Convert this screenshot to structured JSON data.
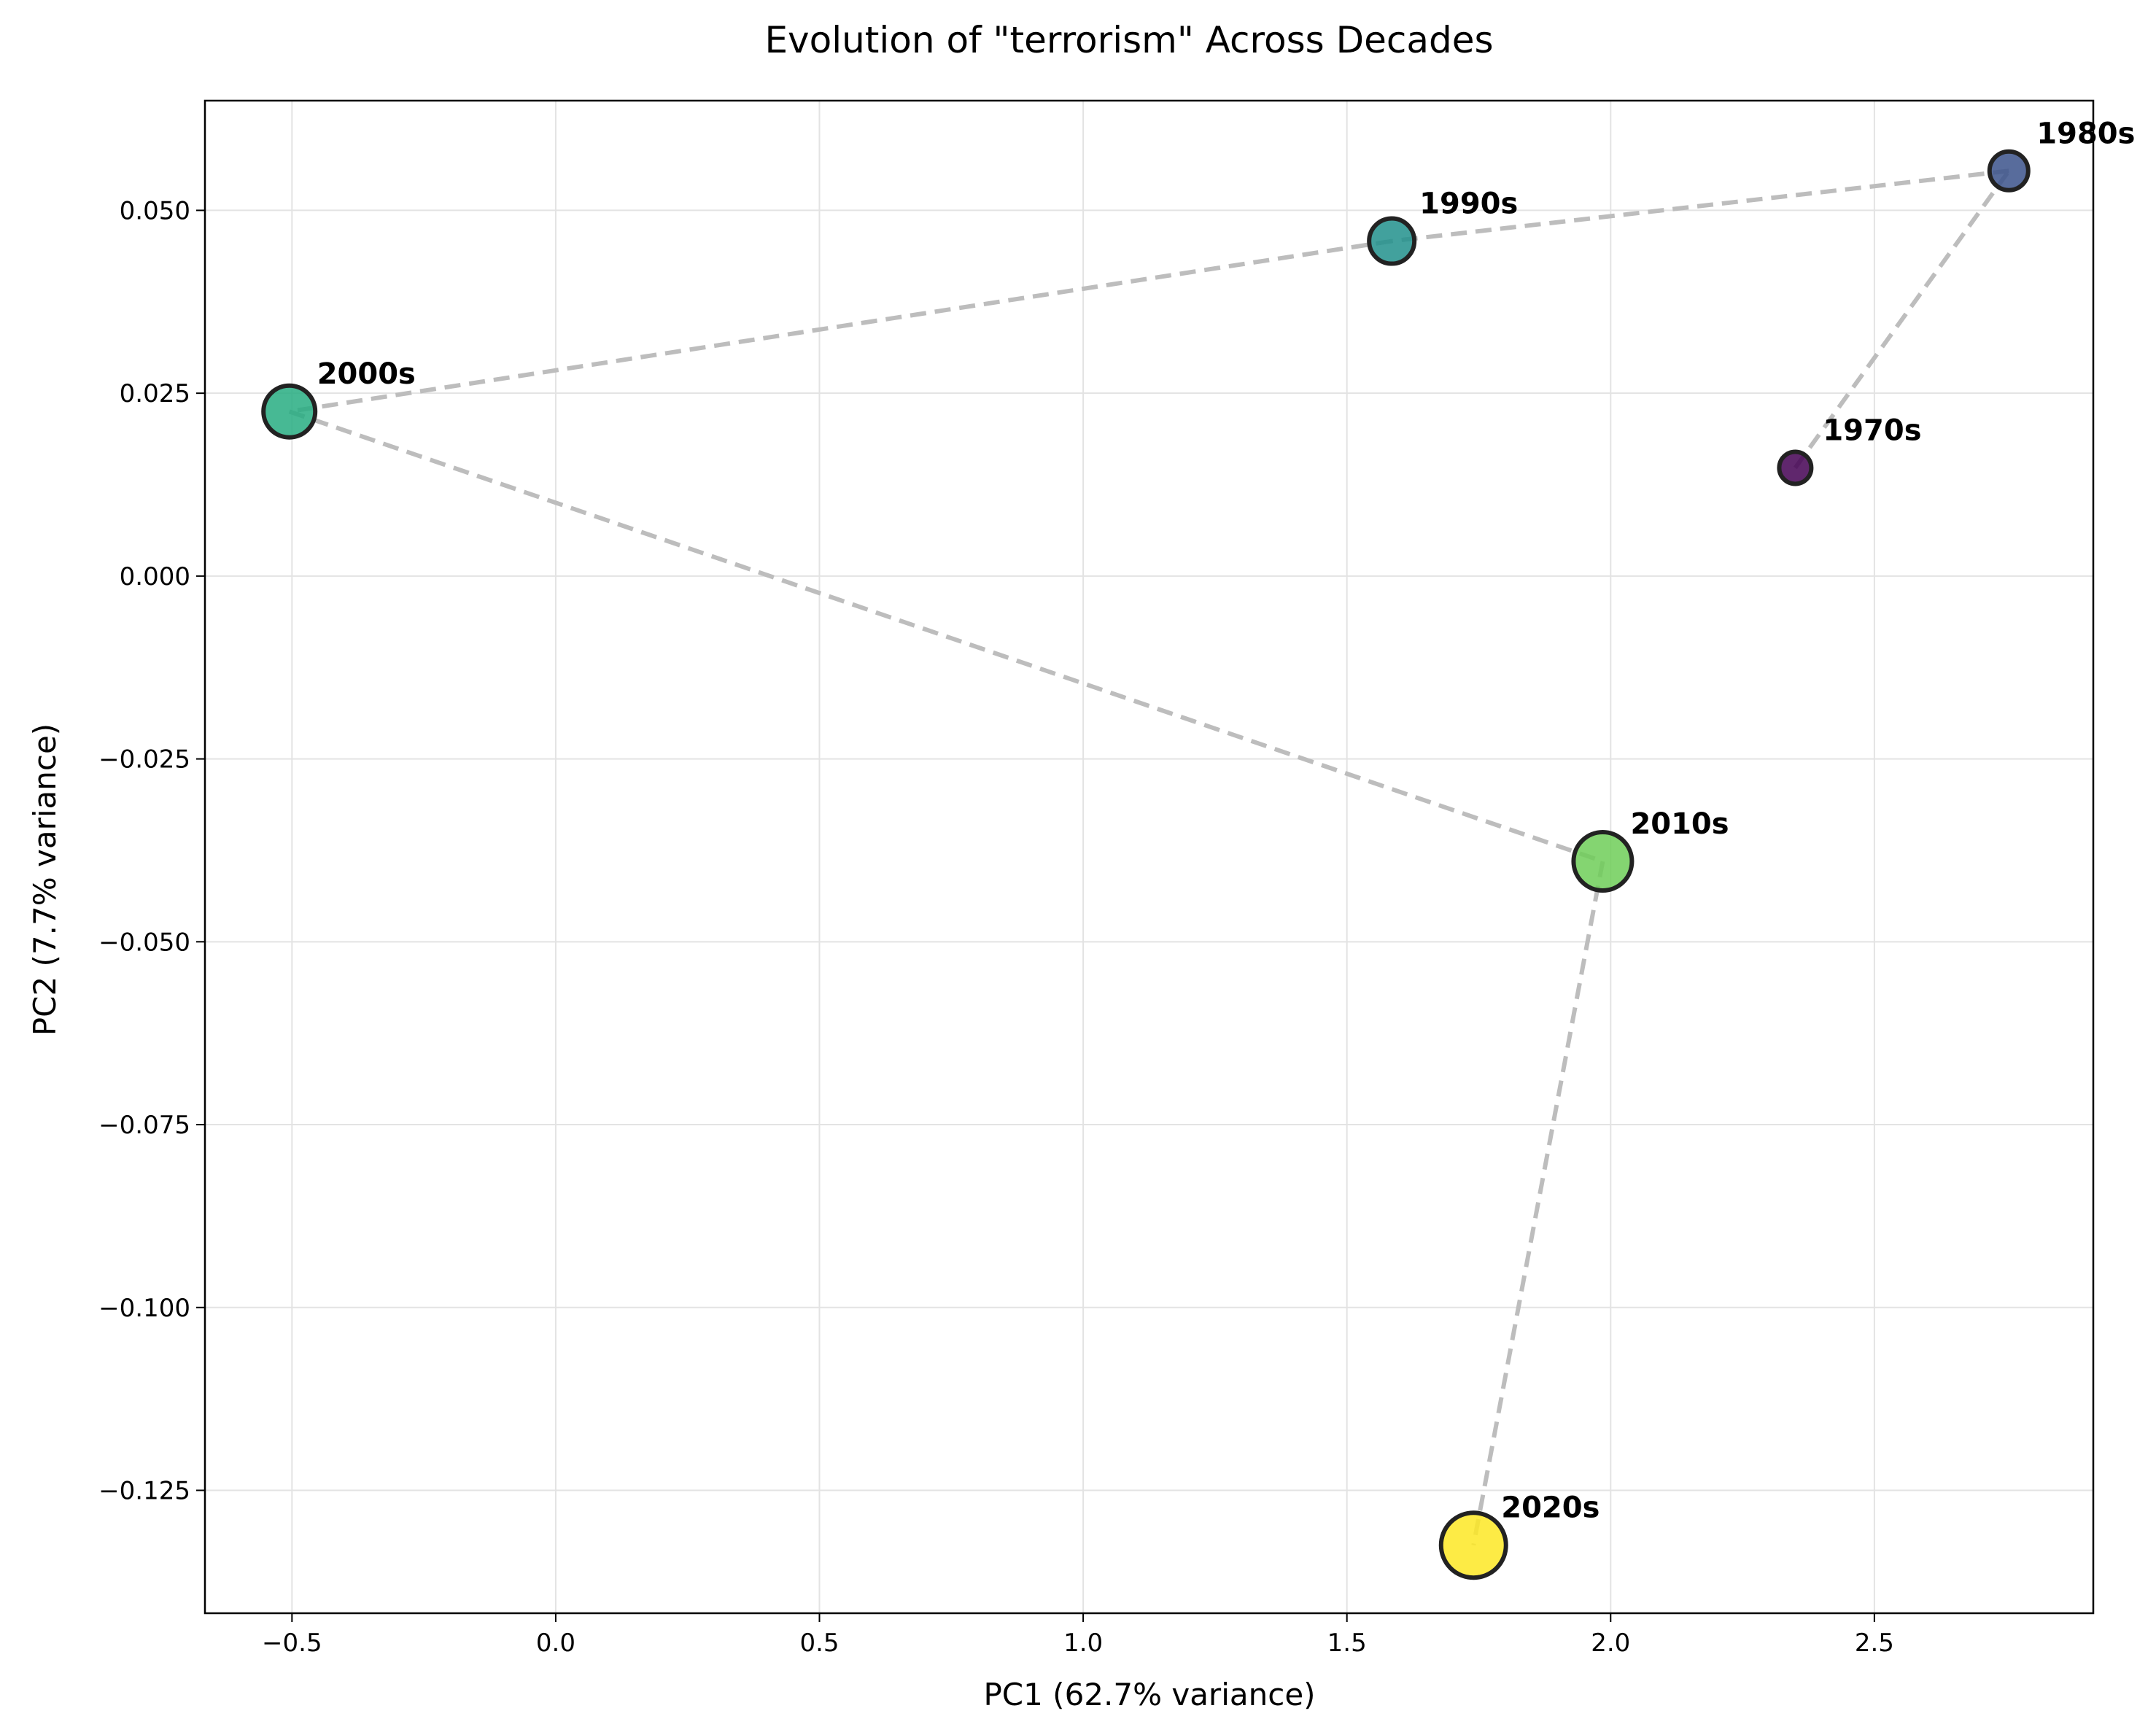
{
  "chart_data": {
    "type": "scatter",
    "title": "Evolution of \"terrorism\" Across Decades",
    "xlabel": "PC1 (62.7% variance)",
    "ylabel": "PC2 (7.7% variance)",
    "xlim": [
      -0.665,
      2.915
    ],
    "ylim": [
      -0.1418,
      0.065
    ],
    "grid": true,
    "legend": "none",
    "connect_points": true,
    "connector_style": "dashed",
    "connector_color": "#bdbdbd",
    "marker_edge_color": "#222222",
    "colormap": "viridis",
    "x_ticks": [
      -0.5,
      0.0,
      0.5,
      1.0,
      1.5,
      2.0,
      2.5
    ],
    "x_tick_labels": [
      "−0.5",
      "0.0",
      "0.5",
      "1.0",
      "1.5",
      "2.0",
      "2.5"
    ],
    "y_ticks": [
      0.05,
      0.025,
      0.0,
      -0.025,
      -0.05,
      -0.075,
      -0.1,
      -0.125
    ],
    "y_tick_labels": [
      "0.050",
      "0.025",
      "0.000",
      "−0.025",
      "−0.050",
      "−0.075",
      "−0.100",
      "−0.125"
    ],
    "points": [
      {
        "label": "1970s",
        "x": 2.35,
        "y": 0.0148,
        "color": "#440154"
      },
      {
        "label": "1980s",
        "x": 2.755,
        "y": 0.0554,
        "color": "#3b528b"
      },
      {
        "label": "1990s",
        "x": 1.585,
        "y": 0.0458,
        "color": "#21918c"
      },
      {
        "label": "2000s",
        "x": -0.505,
        "y": 0.0225,
        "color": "#27ad81"
      },
      {
        "label": "2010s",
        "x": 1.985,
        "y": -0.039,
        "color": "#6ece58"
      },
      {
        "label": "2020s",
        "x": 1.74,
        "y": -0.1325,
        "color": "#fde725"
      }
    ]
  }
}
